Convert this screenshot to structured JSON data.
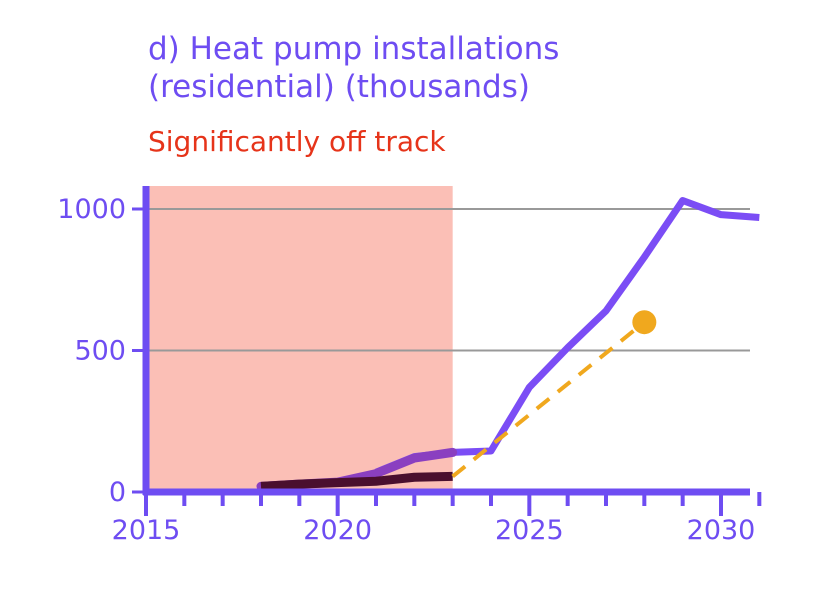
{
  "chart_data": {
    "type": "line",
    "title_line1": "d) Heat pump installations",
    "title_line2": "(residential) (thousands)",
    "status_label": "Significantly off track",
    "xlim": [
      2015,
      2031.5
    ],
    "ylim": [
      0,
      1000
    ],
    "xticks": [
      2015,
      2020,
      2025,
      2030
    ],
    "yticks": [
      0,
      500,
      1000
    ],
    "xtick_labels": [
      "2015",
      "2020",
      "2025",
      "2030"
    ],
    "ytick_labels": [
      "0",
      "500",
      "1000"
    ],
    "grid": "horizontal",
    "shaded_region": {
      "x": [
        2015,
        2023
      ],
      "color": "#fbbfb6"
    },
    "series": [
      {
        "style": "pathway",
        "color": "#7b4df5",
        "x": [
          2021,
          2022,
          2023,
          2024,
          2025,
          2026,
          2027,
          2028,
          2029,
          2030,
          2031
        ],
        "y": [
          70,
          125,
          140,
          145,
          370,
          510,
          640,
          830,
          1030,
          980,
          970
        ]
      },
      {
        "style": "outturn-overlap",
        "color": "#8a3fc0",
        "x": [
          2018,
          2019,
          2020,
          2021,
          2022,
          2023
        ],
        "y": [
          20,
          28,
          35,
          65,
          120,
          140
        ]
      },
      {
        "style": "outturn",
        "color": "#4a0f2e",
        "x": [
          2018,
          2019,
          2020,
          2021,
          2022,
          2023
        ],
        "y": [
          20,
          28,
          33,
          38,
          52,
          55
        ]
      },
      {
        "style": "target-dashed",
        "color": "#f0a81e",
        "x": [
          2023,
          2028
        ],
        "y": [
          55,
          600
        ]
      }
    ],
    "colors": {
      "axis": "#6e4df2",
      "grid": "#999999",
      "title": "#6e4df2",
      "status": "#e6341a"
    }
  }
}
